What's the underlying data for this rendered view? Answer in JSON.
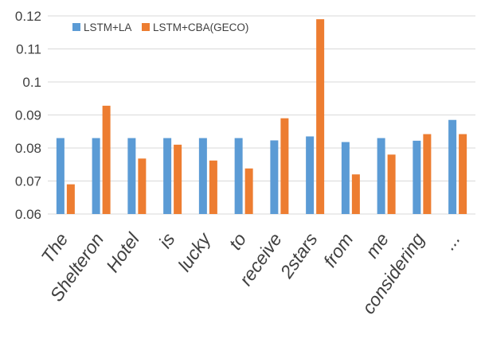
{
  "chart_data": {
    "type": "bar",
    "categories": [
      "The",
      "Shelteron",
      "Hotel",
      "is",
      "lucky",
      "to",
      "receive",
      "2stars",
      "from",
      "me",
      "considering",
      "..."
    ],
    "series": [
      {
        "name": "LSTM+LA",
        "color": "#5b9bd5",
        "values": [
          0.083,
          0.083,
          0.083,
          0.083,
          0.083,
          0.083,
          0.0823,
          0.0835,
          0.0818,
          0.083,
          0.0822,
          0.0885
        ]
      },
      {
        "name": "LSTM+CBA(GECO)",
        "color": "#ed7d31",
        "values": [
          0.069,
          0.0928,
          0.0768,
          0.081,
          0.0762,
          0.0738,
          0.089,
          0.119,
          0.072,
          0.078,
          0.0842,
          0.0842
        ]
      }
    ],
    "title": "",
    "xlabel": "",
    "ylabel": "",
    "ylim": [
      0.06,
      0.12
    ],
    "yticks": [
      "0.06",
      "0.07",
      "0.08",
      "0.09",
      "0.1",
      "0.11",
      "0.12"
    ],
    "grid": true,
    "legend_position": "top-left"
  }
}
